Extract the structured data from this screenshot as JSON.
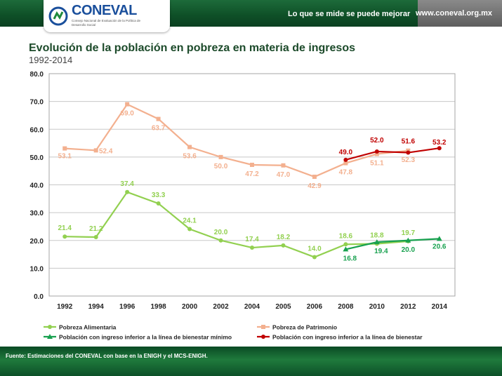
{
  "header": {
    "logo_text": "CONEVAL",
    "logo_tagline": "Consejo Nacional de Evaluación de la Política de Desarrollo Social",
    "motto": "Lo que se mide se puede mejorar",
    "url": "www.coneval.org.mx"
  },
  "footer": {
    "note": "Fuente: Estimaciones del CONEVAL con base en la ENIGH y el MCS-ENIGH."
  },
  "colors": {
    "patrimonio": "#f3b08f",
    "alimentaria": "#92d050",
    "bienestar_minimo": "#18a14f",
    "bienestar": "#c00000"
  },
  "chart_data": {
    "type": "line",
    "title": "Evolución de la población en pobreza en materia de ingresos",
    "subtitle": "1992-2014",
    "categories": [
      "1992",
      "1994",
      "1996",
      "1998",
      "2000",
      "2002",
      "2004",
      "2005",
      "2006",
      "2008",
      "2010",
      "2012",
      "2014"
    ],
    "ylim": [
      0,
      80
    ],
    "yticks": [
      "0.0",
      "10.0",
      "20.0",
      "30.0",
      "40.0",
      "50.0",
      "60.0",
      "70.0",
      "80.0"
    ],
    "grid": true,
    "legend_position": "bottom",
    "series": [
      {
        "name": "Pobreza de Patrimonio",
        "color": "#f3b08f",
        "marker": "square",
        "values": [
          53.1,
          52.4,
          69.0,
          63.7,
          53.6,
          50.0,
          47.2,
          47.0,
          42.9,
          47.8,
          51.1,
          52.3,
          null
        ],
        "labels": [
          "53.1",
          "52.4",
          "69.0",
          "63.7",
          "53.6",
          "50.0",
          "47.2",
          "47.0",
          "42.9",
          "47.8",
          "51.1",
          "52.3",
          ""
        ]
      },
      {
        "name": "Pobreza Alimentaria",
        "color": "#92d050",
        "marker": "circle",
        "values": [
          21.4,
          21.2,
          37.4,
          33.3,
          24.1,
          20.0,
          17.4,
          18.2,
          14.0,
          18.6,
          18.8,
          19.7,
          null
        ],
        "labels": [
          "21.4",
          "21.2",
          "37.4",
          "33.3",
          "24.1",
          "20.0",
          "17.4",
          "18.2",
          "14.0",
          "18.6",
          "18.8",
          "19.7",
          ""
        ]
      },
      {
        "name": "Población con ingreso inferior a la línea de bienestar",
        "color": "#c00000",
        "marker": "circle",
        "values": [
          null,
          null,
          null,
          null,
          null,
          null,
          null,
          null,
          null,
          49.0,
          52.0,
          51.6,
          53.2
        ],
        "labels": [
          "",
          "",
          "",
          "",
          "",
          "",
          "",
          "",
          "",
          "49.0",
          "52.0",
          "51.6",
          "53.2"
        ]
      },
      {
        "name": "Población con ingreso inferior a la línea de bienestar mínimo",
        "color": "#18a14f",
        "marker": "triangle",
        "values": [
          null,
          null,
          null,
          null,
          null,
          null,
          null,
          null,
          null,
          16.8,
          19.4,
          20.0,
          20.6
        ],
        "labels": [
          "",
          "",
          "",
          "",
          "",
          "",
          "",
          "",
          "",
          "16.8",
          "19.4",
          "20.0",
          "20.6"
        ]
      }
    ]
  }
}
